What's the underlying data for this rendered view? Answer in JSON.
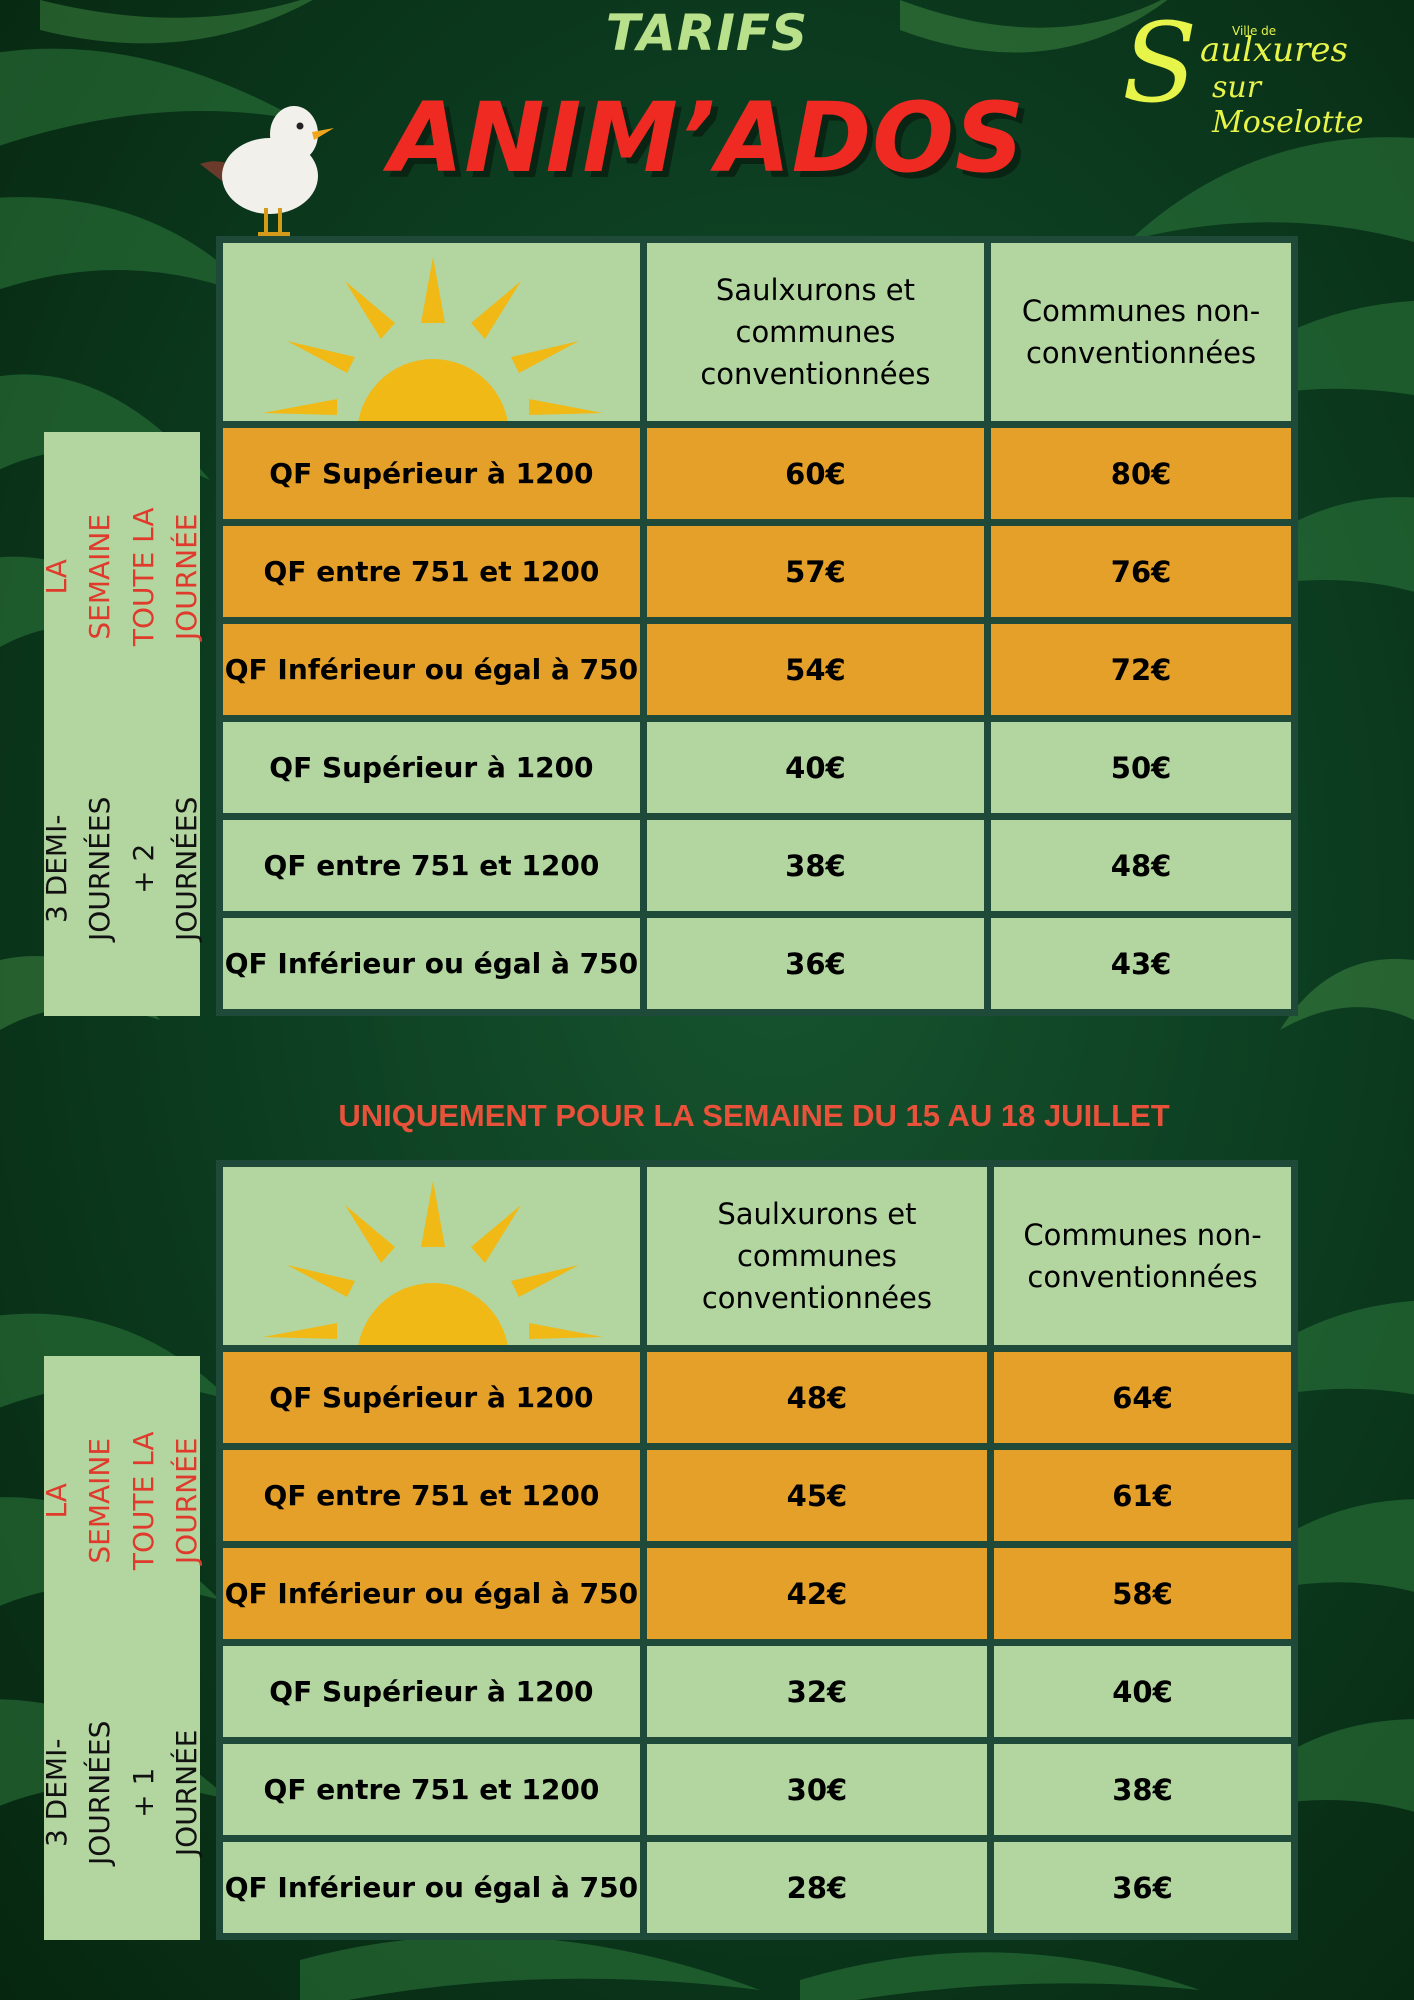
{
  "header": {
    "tarifs": "TARIFS",
    "title": "ANIM’ADOS"
  },
  "logo": {
    "ville": "Ville de",
    "initial": "S",
    "line1": "aulxures",
    "line2": "sur Moselotte",
    "color": "#e7f44a"
  },
  "tables": [
    {
      "columns": [
        "Saulxurons et\ncommunes\nconventionnées",
        "Communes non-\nconventionnées"
      ],
      "groups": [
        {
          "label": "LA SEMAINE\nTOUTE LA\nJOURNÉE",
          "color": "#e03a2c",
          "rows": [
            {
              "label": "QF Supérieur à 1200",
              "a": "60€",
              "b": "80€"
            },
            {
              "label": "QF entre 751 et 1200",
              "a": "57€",
              "b": "76€"
            },
            {
              "label": "QF Inférieur ou égal à 750",
              "a": "54€",
              "b": "72€"
            }
          ]
        },
        {
          "label": "3 DEMI-JOURNÉES\n+ 2 JOURNÉES",
          "color": "#111111",
          "rows": [
            {
              "label": "QF Supérieur à 1200",
              "a": "40€",
              "b": "50€"
            },
            {
              "label": "QF entre 751 et 1200",
              "a": "38€",
              "b": "48€"
            },
            {
              "label": "QF Inférieur ou égal à 750",
              "a": "36€",
              "b": "43€"
            }
          ]
        }
      ]
    },
    {
      "columns": [
        "Saulxurons et\ncommunes\nconventionnées",
        "Communes non-\nconventionnées"
      ],
      "groups": [
        {
          "label": "LA SEMAINE\nTOUTE LA\nJOURNÉE",
          "color": "#e03a2c",
          "rows": [
            {
              "label": "QF Supérieur à 1200",
              "a": "48€",
              "b": "64€"
            },
            {
              "label": "QF entre 751 et 1200",
              "a": "45€",
              "b": "61€"
            },
            {
              "label": "QF Inférieur ou égal à 750",
              "a": "42€",
              "b": "58€"
            }
          ]
        },
        {
          "label": "3 DEMI-JOURNÉES\n+ 1 JOURNÉE",
          "color": "#111111",
          "rows": [
            {
              "label": "QF Supérieur à 1200",
              "a": "32€",
              "b": "40€"
            },
            {
              "label": "QF entre 751 et 1200",
              "a": "30€",
              "b": "38€"
            },
            {
              "label": "QF Inférieur ou égal à 750",
              "a": "28€",
              "b": "36€"
            }
          ]
        }
      ]
    }
  ],
  "notice": "UNIQUEMENT POUR LA SEMAINE DU 15 AU 18 JUILLET",
  "colors": {
    "orange_row": "#e5a02a",
    "green_row": "#b3d6a0",
    "title_red": "#ee2a22",
    "tarifs_green": "#b9e08a",
    "sun": "#f0b915"
  },
  "icons": [
    "seagull-icon",
    "sun-icon",
    "palm-leaf-icon"
  ]
}
